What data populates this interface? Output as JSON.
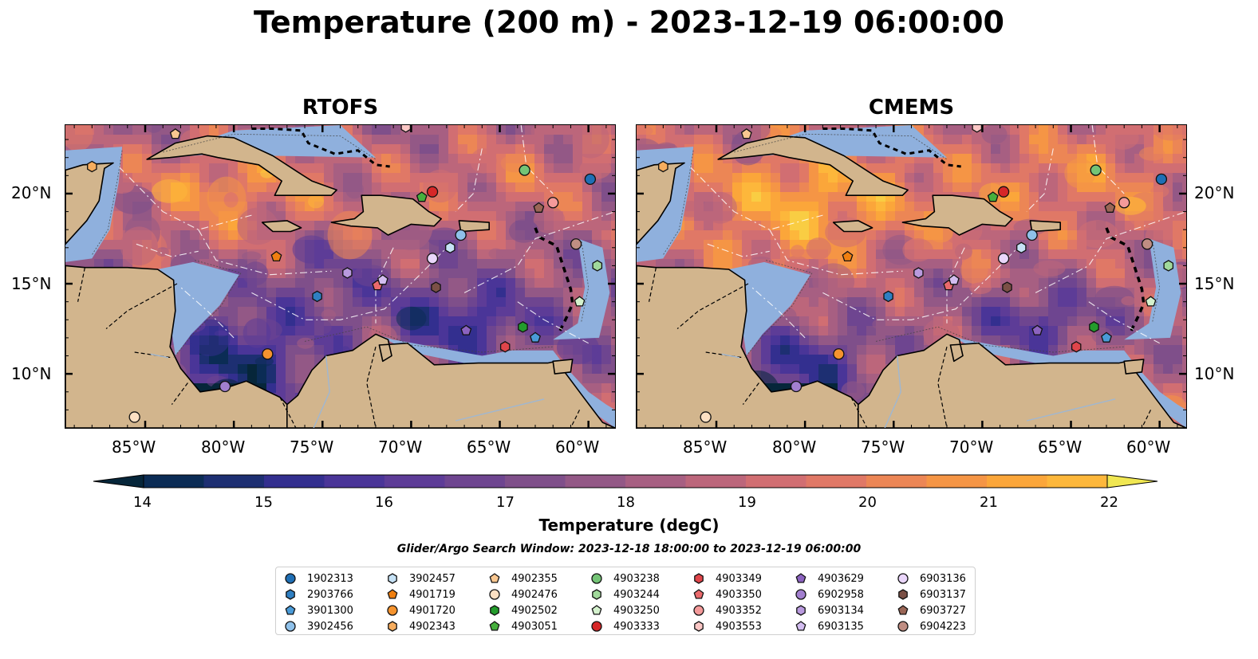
{
  "title": "Temperature (200 m) - 2023-12-19 06:00:00",
  "panels": [
    {
      "title": "RTOFS"
    },
    {
      "title": "CMEMS"
    }
  ],
  "axes": {
    "lon_labels": [
      "85°W",
      "80°W",
      "75°W",
      "70°W",
      "65°W",
      "60°W"
    ],
    "lat_labels": [
      "20°N",
      "15°N",
      "10°N"
    ],
    "lon_range": [
      -89.5,
      -58.5
    ],
    "lat_range": [
      7.0,
      23.8
    ]
  },
  "colorbar": {
    "title": "Temperature (degC)",
    "tick_labels": [
      "14",
      "15",
      "16",
      "17",
      "18",
      "19",
      "20",
      "21",
      "22"
    ],
    "min": 14,
    "max": 22,
    "step": 0.5,
    "extend": "both",
    "colors": [
      "#06263a",
      "#0b2c55",
      "#1d2f72",
      "#332f8f",
      "#4a3598",
      "#5d3c97",
      "#6e4590",
      "#7f4f8a",
      "#935886",
      "#a75f82",
      "#bc667b",
      "#d16e72",
      "#e07866",
      "#ec8655",
      "#f59545",
      "#fba63a",
      "#fdb73b",
      "#f9cd43",
      "#f0e752"
    ]
  },
  "search_window": "Glider/Argo Search Window: 2023-12-18 18:00:00 to 2023-12-19 06:00:00",
  "legend": [
    {
      "label": "1902313",
      "marker": "circle",
      "color": "#1f6fb5"
    },
    {
      "label": "2903766",
      "marker": "hexagon",
      "color": "#2f7fc2"
    },
    {
      "label": "3901300",
      "marker": "pentagon",
      "color": "#4a9bd8"
    },
    {
      "label": "3902456",
      "marker": "circle",
      "color": "#8fc1ea"
    },
    {
      "label": "3902457",
      "marker": "hexagon",
      "color": "#c6e2f6"
    },
    {
      "label": "4901719",
      "marker": "pentagon",
      "color": "#f07f10"
    },
    {
      "label": "4901720",
      "marker": "circle",
      "color": "#f5932e"
    },
    {
      "label": "4902343",
      "marker": "hexagon",
      "color": "#f7ad5e"
    },
    {
      "label": "4902355",
      "marker": "pentagon",
      "color": "#f9c790"
    },
    {
      "label": "4902476",
      "marker": "circle",
      "color": "#fde0c3"
    },
    {
      "label": "4902502",
      "marker": "hexagon",
      "color": "#239c2c"
    },
    {
      "label": "4903051",
      "marker": "pentagon",
      "color": "#46b03d"
    },
    {
      "label": "4903238",
      "marker": "circle",
      "color": "#74c476"
    },
    {
      "label": "4903244",
      "marker": "hexagon",
      "color": "#a1d99b"
    },
    {
      "label": "4903250",
      "marker": "pentagon",
      "color": "#d4f1cd"
    },
    {
      "label": "4903333",
      "marker": "circle",
      "color": "#d62728"
    },
    {
      "label": "4903349",
      "marker": "hexagon",
      "color": "#e0454a"
    },
    {
      "label": "4903350",
      "marker": "pentagon",
      "color": "#ea6a6c"
    },
    {
      "label": "4903352",
      "marker": "circle",
      "color": "#f49a9a"
    },
    {
      "label": "4903553",
      "marker": "hexagon",
      "color": "#fbc7c5"
    },
    {
      "label": "4903629",
      "marker": "pentagon",
      "color": "#8c63c0"
    },
    {
      "label": "6902958",
      "marker": "circle",
      "color": "#a27fcf"
    },
    {
      "label": "6903134",
      "marker": "hexagon",
      "color": "#b99ade"
    },
    {
      "label": "6903135",
      "marker": "pentagon",
      "color": "#d3bdf0"
    },
    {
      "label": "6903136",
      "marker": "circle",
      "color": "#ead6fb"
    },
    {
      "label": "6903137",
      "marker": "hexagon",
      "color": "#7b5046"
    },
    {
      "label": "6903727",
      "marker": "pentagon",
      "color": "#9a6656"
    },
    {
      "label": "6904223",
      "marker": "circle",
      "color": "#c08e83"
    }
  ],
  "floats": [
    {
      "id": "1902313",
      "lon": -59.9,
      "lat": 20.8
    },
    {
      "id": "2903766",
      "lon": -75.3,
      "lat": 14.3
    },
    {
      "id": "3901300",
      "lon": -63.0,
      "lat": 12.0
    },
    {
      "id": "3902456",
      "lon": -67.2,
      "lat": 17.7
    },
    {
      "id": "3902457",
      "lon": -67.8,
      "lat": 17.0
    },
    {
      "id": "4901719",
      "lon": -77.6,
      "lat": 16.5
    },
    {
      "id": "4901720",
      "lon": -78.1,
      "lat": 11.1
    },
    {
      "id": "4902343",
      "lon": -88.0,
      "lat": 21.5
    },
    {
      "id": "4902355",
      "lon": -83.3,
      "lat": 23.3
    },
    {
      "id": "4902476",
      "lon": -85.6,
      "lat": 7.6
    },
    {
      "id": "4902502",
      "lon": -63.7,
      "lat": 12.6
    },
    {
      "id": "4903051",
      "lon": -69.4,
      "lat": 19.8
    },
    {
      "id": "4903238",
      "lon": -63.6,
      "lat": 21.3
    },
    {
      "id": "4903244",
      "lon": -59.5,
      "lat": 16.0
    },
    {
      "id": "4903250",
      "lon": -60.5,
      "lat": 14.0
    },
    {
      "id": "4903333",
      "lon": -68.8,
      "lat": 20.1
    },
    {
      "id": "4903349",
      "lon": -64.7,
      "lat": 11.5
    },
    {
      "id": "4903350",
      "lon": -71.9,
      "lat": 14.9
    },
    {
      "id": "4903352",
      "lon": -62.0,
      "lat": 19.5
    },
    {
      "id": "4903553",
      "lon": -70.3,
      "lat": 23.7
    },
    {
      "id": "4903629",
      "lon": -66.9,
      "lat": 12.4
    },
    {
      "id": "6902958",
      "lon": -80.5,
      "lat": 9.3
    },
    {
      "id": "6903134",
      "lon": -73.6,
      "lat": 15.6
    },
    {
      "id": "6903135",
      "lon": -71.6,
      "lat": 15.2
    },
    {
      "id": "6903136",
      "lon": -68.8,
      "lat": 16.4
    },
    {
      "id": "6903137",
      "lon": -68.6,
      "lat": 14.8
    },
    {
      "id": "6903727",
      "lon": -62.8,
      "lat": 19.2
    },
    {
      "id": "6904223",
      "lon": -60.7,
      "lat": 17.2
    }
  ]
}
